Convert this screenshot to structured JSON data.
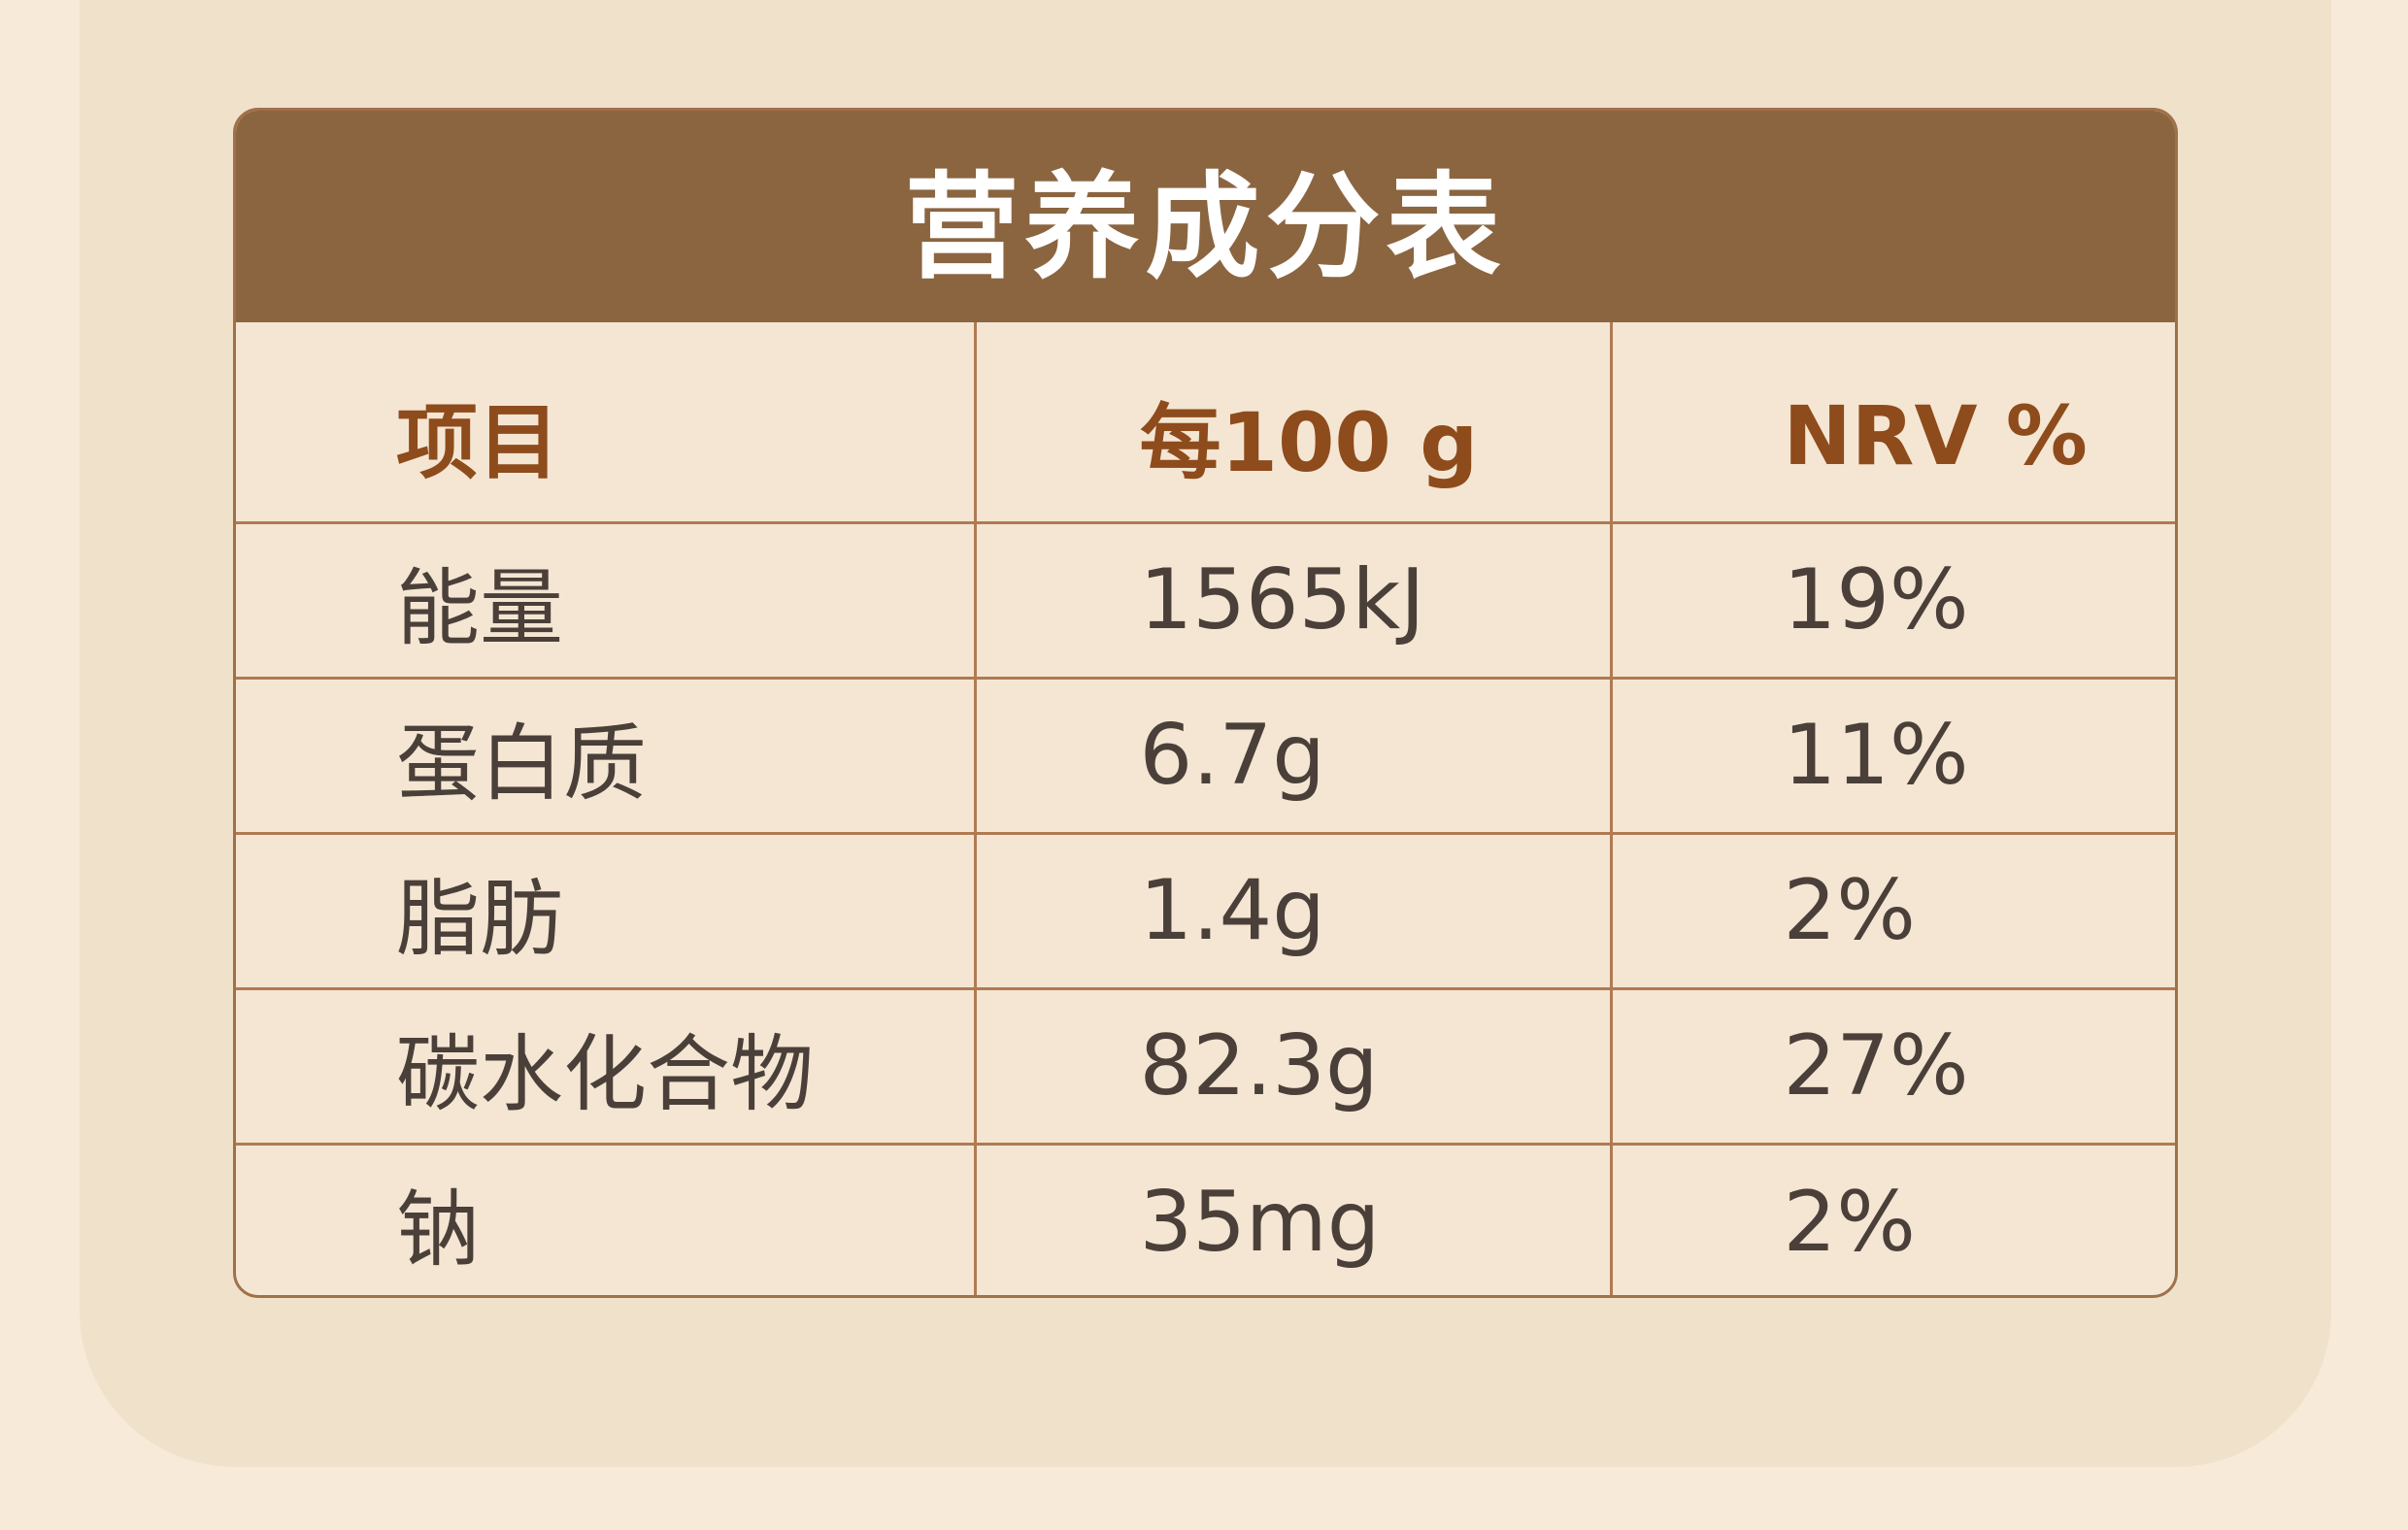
{
  "header": {
    "title": "营养成分表"
  },
  "table": {
    "columns": [
      "项目",
      "每100 g",
      "NRV %"
    ],
    "rows": [
      [
        "能量",
        "1565kJ",
        "19%"
      ],
      [
        "蛋白质",
        "6.7g",
        "11%"
      ],
      [
        "脂肪",
        "1.4g",
        "2%"
      ],
      [
        "碳水化合物",
        "82.3g",
        "27%"
      ],
      [
        "钠",
        "35mg",
        "2%"
      ]
    ]
  }
}
